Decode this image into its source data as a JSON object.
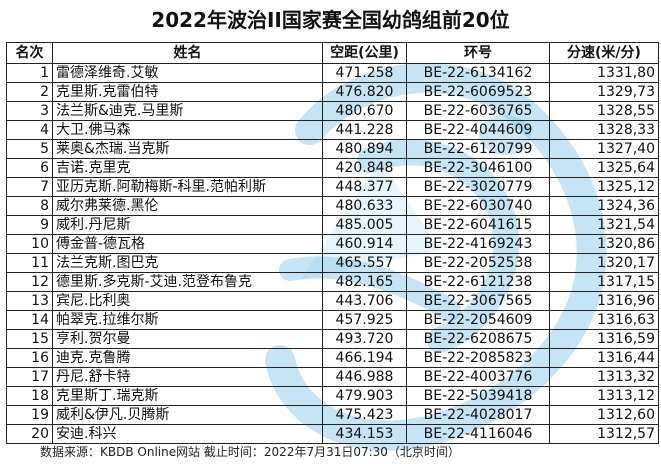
{
  "title": "2022年波治II国家赛全国幼鸽组前20位",
  "table": {
    "headers": {
      "rank": "名次",
      "name": "姓名",
      "distance": "空距(公里)",
      "ring": "环号",
      "speed": "分速(米/分)"
    },
    "rows": [
      {
        "rank": "1",
        "name": "雷德泽维奇.艾敏",
        "distance": "471.258",
        "ring": "BE-22-6134162",
        "speed": "1331,80"
      },
      {
        "rank": "2",
        "name": "克里斯.克雷伯特",
        "distance": "476.820",
        "ring": "BE-22-6069523",
        "speed": "1329,73"
      },
      {
        "rank": "3",
        "name": "法兰斯&迪克.马里斯",
        "distance": "480.670",
        "ring": "BE-22-6036765",
        "speed": "1328,55"
      },
      {
        "rank": "4",
        "name": "大卫.佛马森",
        "distance": "441.228",
        "ring": "BE-22-4044609",
        "speed": "1328,33"
      },
      {
        "rank": "5",
        "name": "莱奥&杰瑞.当克斯",
        "distance": "480.894",
        "ring": "BE-22-6120799",
        "speed": "1327,40"
      },
      {
        "rank": "6",
        "name": "吉诺.克里克",
        "distance": "420.848",
        "ring": "BE-22-3046100",
        "speed": "1325,64"
      },
      {
        "rank": "7",
        "name": "亚历克斯.阿勒梅斯-科里.范帕利斯",
        "distance": "448.377",
        "ring": "BE-22-3020779",
        "speed": "1325,12"
      },
      {
        "rank": "8",
        "name": "威尔弗莱德.黑伦",
        "distance": "480.633",
        "ring": "BE-22-6030740",
        "speed": "1324,36"
      },
      {
        "rank": "9",
        "name": "威利.丹尼斯",
        "distance": "485.005",
        "ring": "BE-22-6041615",
        "speed": "1321,54"
      },
      {
        "rank": "10",
        "name": "傅金普-德瓦格",
        "distance": "460.914",
        "ring": "BE-22-4169243",
        "speed": "1320,86"
      },
      {
        "rank": "11",
        "name": "法兰克斯.图巴克",
        "distance": "465.557",
        "ring": "BE-22-2052538",
        "speed": "1320,17"
      },
      {
        "rank": "12",
        "name": "德里斯.多克斯-艾迪.范登布鲁克",
        "distance": "482.165",
        "ring": "BE-22-6121238",
        "speed": "1317,15"
      },
      {
        "rank": "13",
        "name": "宾尼.比利奥",
        "distance": "443.706",
        "ring": "BE-22-3067565",
        "speed": "1316,96"
      },
      {
        "rank": "14",
        "name": "帕翠克.拉维尔斯",
        "distance": "457.925",
        "ring": "BE-22-2054609",
        "speed": "1316,63"
      },
      {
        "rank": "15",
        "name": "亨利.贺尔曼",
        "distance": "493.720",
        "ring": "BE-22-6208675",
        "speed": "1316,59"
      },
      {
        "rank": "16",
        "name": "迪克.克鲁腾",
        "distance": "466.194",
        "ring": "BE-22-2085823",
        "speed": "1316,44"
      },
      {
        "rank": "17",
        "name": "丹尼.舒卡特",
        "distance": "446.988",
        "ring": "BE-22-4003776",
        "speed": "1313,32"
      },
      {
        "rank": "18",
        "name": "克里斯丁.瑞克斯",
        "distance": "479.903",
        "ring": "BE-22-5039418",
        "speed": "1313,12"
      },
      {
        "rank": "19",
        "name": "威利&伊凡.贝腾斯",
        "distance": "475.423",
        "ring": "BE-22-4028017",
        "speed": "1312,60"
      },
      {
        "rank": "20",
        "name": "安迪.科兴",
        "distance": "434.153",
        "ring": "BE-22-4116046",
        "speed": "1312,57"
      }
    ]
  },
  "source_note": "数据来源：KBDB Online网站  截止时间：2022年7月31日07:30（北京时间）",
  "colors": {
    "watermark": "#7fc3ec",
    "border": "#222222",
    "text": "#111111"
  },
  "icons": {
    "watermark": "pigeon-watermark-icon"
  }
}
